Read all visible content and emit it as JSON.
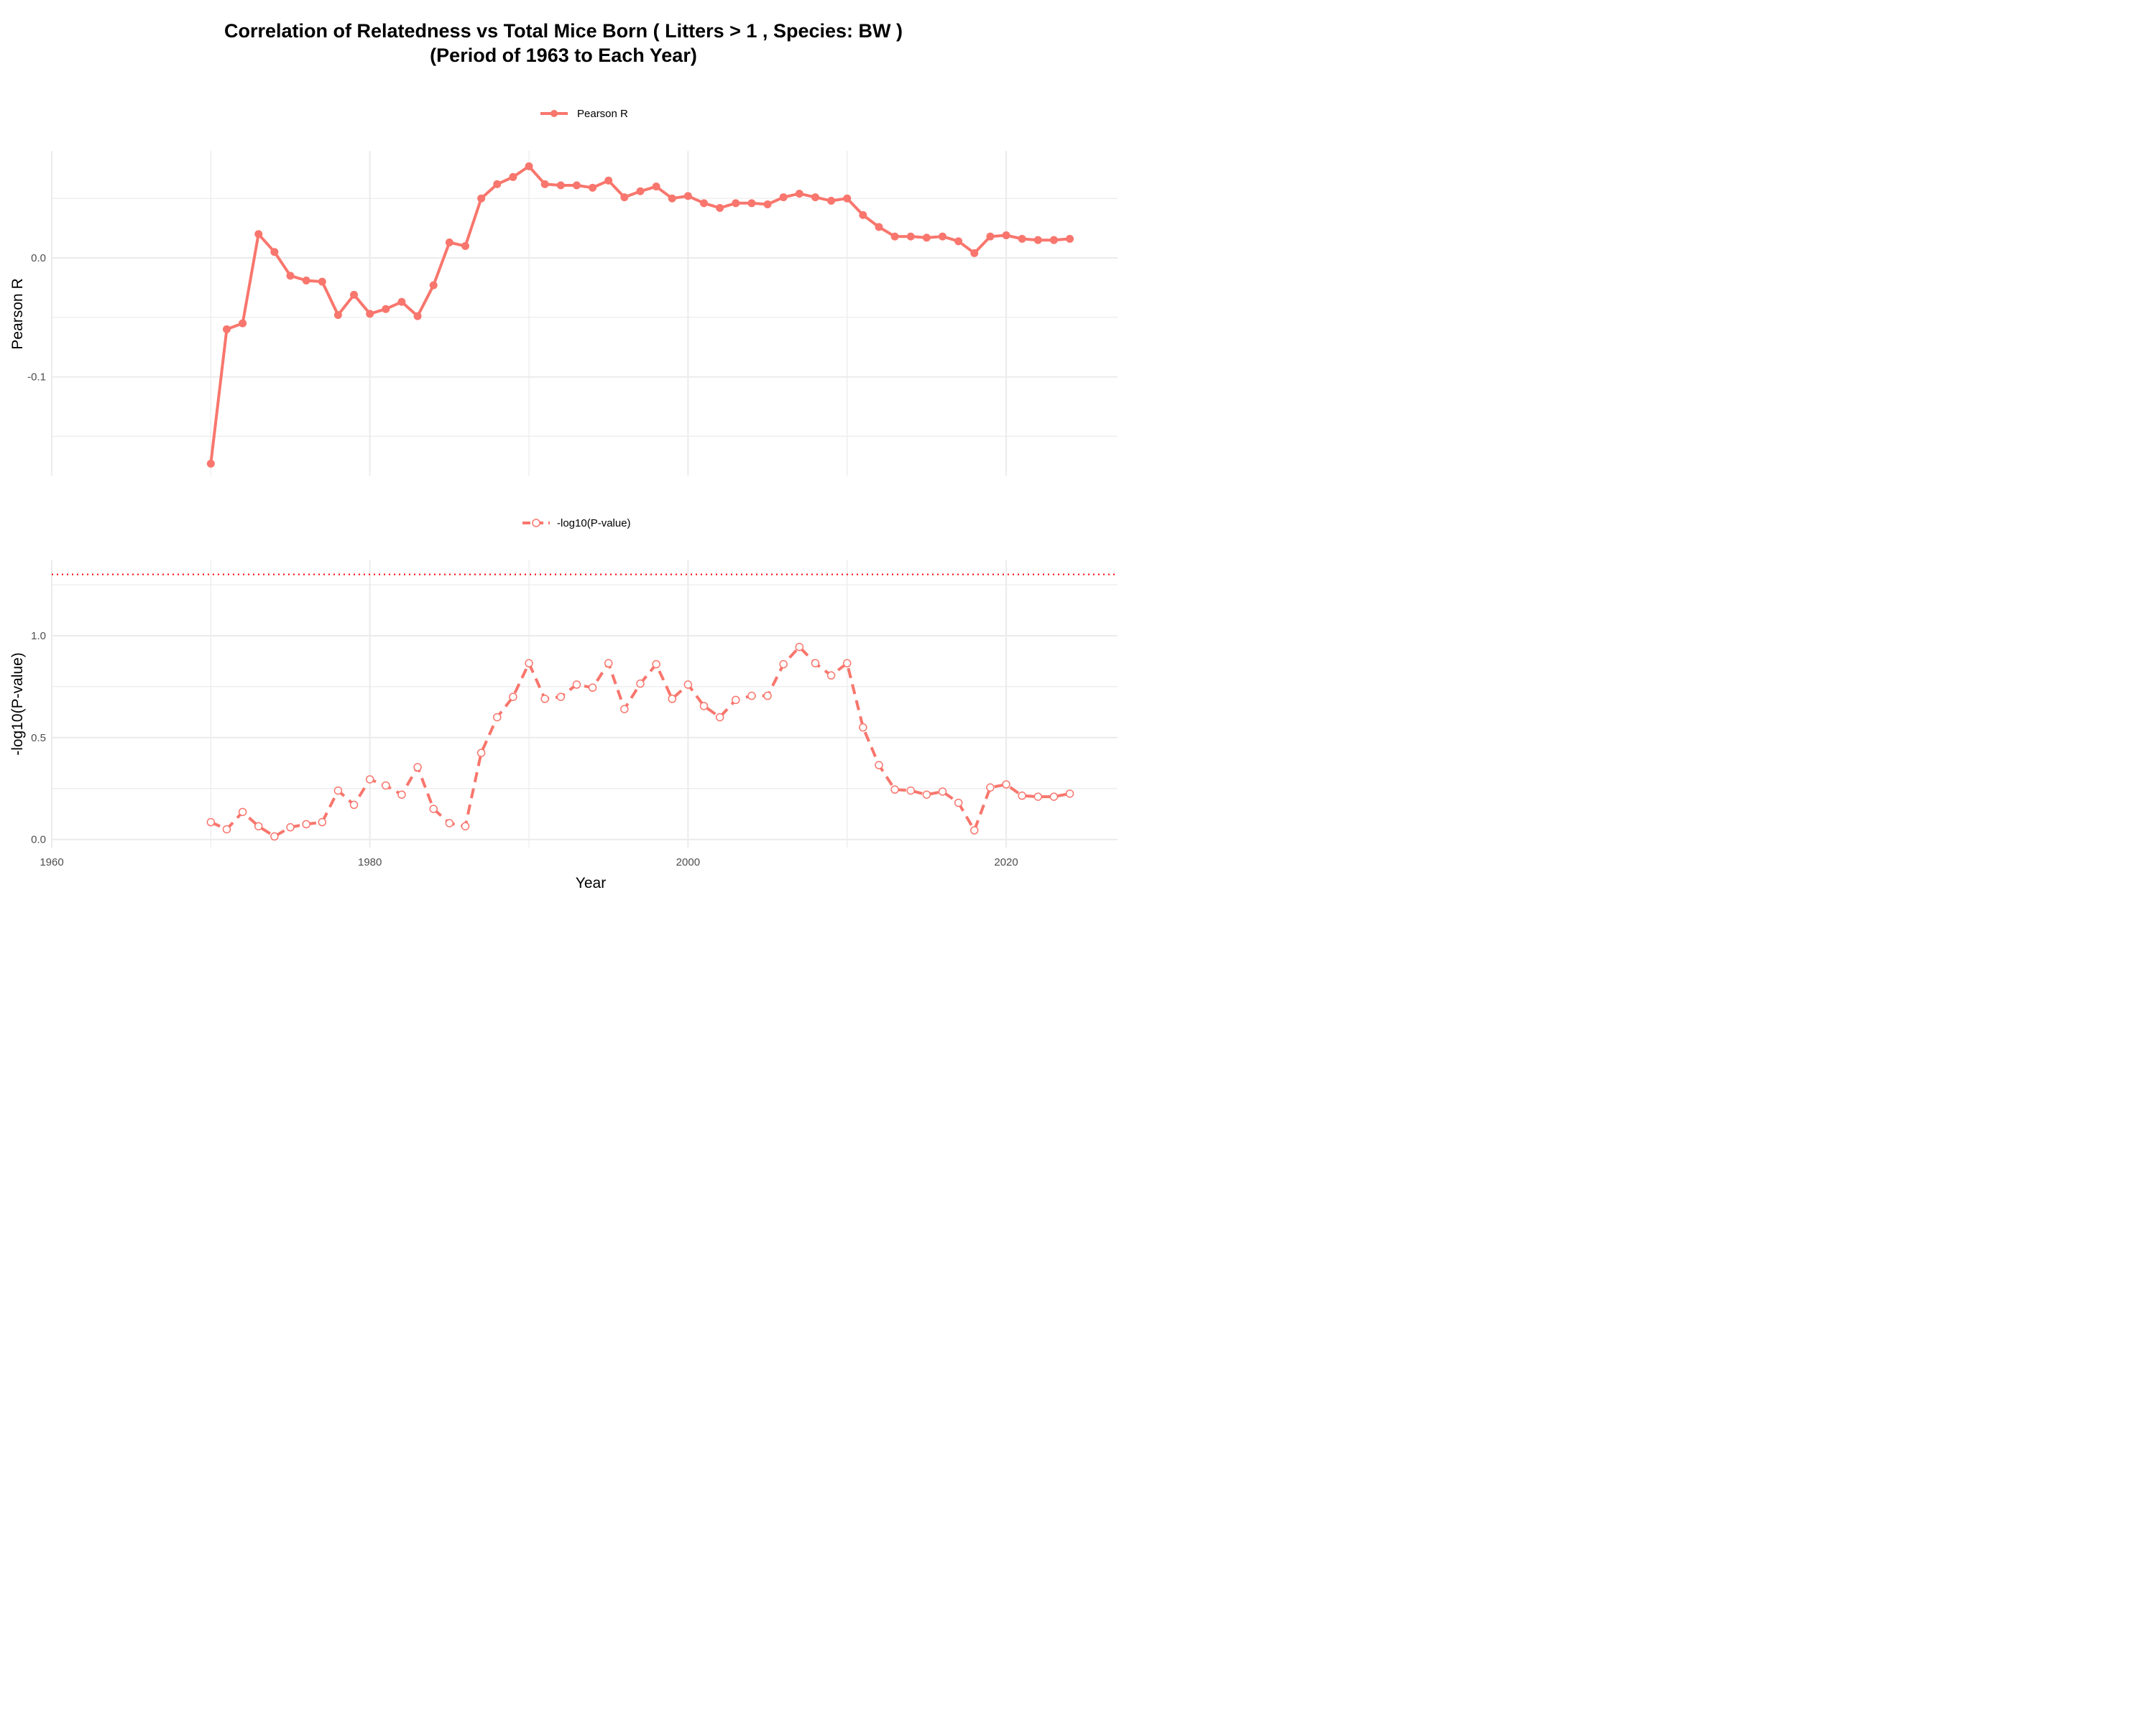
{
  "chart_data": [
    {
      "type": "line",
      "title": "Correlation of Relatedness vs Total Mice Born ( Litters > 1 , Species: BW )",
      "subtitle": "(Period of 1963 to Each Year)",
      "xlabel": "",
      "ylabel": "Pearson R",
      "xlim": [
        1960,
        2027
      ],
      "ylim": [
        -0.183,
        0.09
      ],
      "y_ticks": [
        "-0.1",
        "0.0"
      ],
      "y_tick_values": [
        -0.1,
        0.0
      ],
      "grid": true,
      "legend": "top-center",
      "color": "#F8766D",
      "series": [
        {
          "name": "Pearson R",
          "x": [
            1970,
            1971,
            1972,
            1973,
            1974,
            1975,
            1976,
            1977,
            1978,
            1979,
            1980,
            1981,
            1982,
            1983,
            1984,
            1985,
            1986,
            1987,
            1988,
            1989,
            1990,
            1991,
            1992,
            1993,
            1994,
            1995,
            1996,
            1997,
            1998,
            1999,
            2000,
            2001,
            2002,
            2003,
            2004,
            2005,
            2006,
            2007,
            2008,
            2009,
            2010,
            2011,
            2012,
            2013,
            2014,
            2015,
            2016,
            2017,
            2018,
            2019,
            2020,
            2021,
            2022,
            2023,
            2024
          ],
          "values": [
            -0.173,
            -0.06,
            -0.055,
            0.02,
            0.005,
            -0.015,
            -0.019,
            -0.02,
            -0.048,
            -0.031,
            -0.047,
            -0.043,
            -0.037,
            -0.049,
            -0.023,
            0.013,
            0.01,
            0.05,
            0.062,
            0.068,
            0.077,
            0.062,
            0.061,
            0.061,
            0.059,
            0.065,
            0.051,
            0.056,
            0.06,
            0.05,
            0.052,
            0.046,
            0.042,
            0.046,
            0.046,
            0.045,
            0.051,
            0.054,
            0.051,
            0.048,
            0.05,
            0.036,
            0.026,
            0.018,
            0.018,
            0.017,
            0.018,
            0.014,
            0.004,
            0.018,
            0.019,
            0.016,
            0.015,
            0.015,
            0.016
          ]
        }
      ]
    },
    {
      "type": "line",
      "title": "",
      "xlabel": "Year",
      "ylabel": "-log10(P-value)",
      "xlim": [
        1960,
        2027
      ],
      "ylim": [
        -0.04,
        1.37
      ],
      "x_ticks": [
        "1960",
        "1980",
        "2000",
        "2020"
      ],
      "x_tick_values": [
        1960,
        1980,
        2000,
        2020
      ],
      "y_ticks": [
        "0.0",
        "0.5",
        "1.0"
      ],
      "y_tick_values": [
        0.0,
        0.5,
        1.0
      ],
      "reference_line": {
        "y": 1.301,
        "style": "dotted",
        "color": "#FF0000"
      },
      "grid": true,
      "legend": "top-center",
      "color": "#F8766D",
      "series": [
        {
          "name": "-log10(P-value)",
          "x": [
            1970,
            1971,
            1972,
            1973,
            1974,
            1975,
            1976,
            1977,
            1978,
            1979,
            1980,
            1981,
            1982,
            1983,
            1984,
            1985,
            1986,
            1987,
            1988,
            1989,
            1990,
            1991,
            1992,
            1993,
            1994,
            1995,
            1996,
            1997,
            1998,
            1999,
            2000,
            2001,
            2002,
            2003,
            2004,
            2005,
            2006,
            2007,
            2008,
            2009,
            2010,
            2011,
            2012,
            2013,
            2014,
            2015,
            2016,
            2017,
            2018,
            2019,
            2020,
            2021,
            2022,
            2023,
            2024
          ],
          "values": [
            0.085,
            0.05,
            0.135,
            0.065,
            0.015,
            0.06,
            0.075,
            0.085,
            0.24,
            0.17,
            0.295,
            0.265,
            0.22,
            0.355,
            0.15,
            0.08,
            0.065,
            0.425,
            0.6,
            0.7,
            0.865,
            0.69,
            0.7,
            0.76,
            0.745,
            0.865,
            0.64,
            0.765,
            0.86,
            0.69,
            0.76,
            0.655,
            0.6,
            0.685,
            0.705,
            0.705,
            0.86,
            0.945,
            0.865,
            0.805,
            0.865,
            0.55,
            0.365,
            0.245,
            0.24,
            0.22,
            0.235,
            0.18,
            0.045,
            0.255,
            0.27,
            0.215,
            0.21,
            0.21,
            0.225
          ]
        }
      ]
    }
  ]
}
